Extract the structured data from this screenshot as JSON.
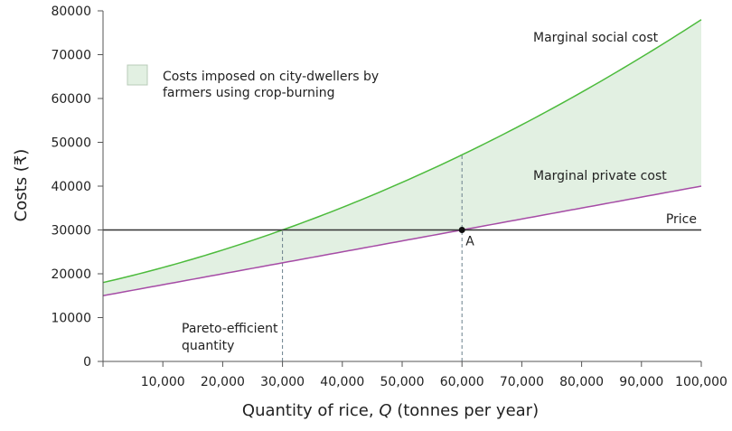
{
  "chart_data": {
    "type": "line",
    "title": "",
    "xlabel": "Quantity of rice, ",
    "xlabel_italic": "Q",
    "xlabel_suffix": " (tonnes per year)",
    "ylabel": "Costs (₹)",
    "xlim": [
      0,
      100000
    ],
    "ylim": [
      0,
      80000
    ],
    "grid": false,
    "x_ticks": [
      10000,
      20000,
      30000,
      40000,
      50000,
      60000,
      70000,
      80000,
      90000,
      100000
    ],
    "x_tick_labels": [
      "10,000",
      "20,000",
      "30,000",
      "40,000",
      "50,000",
      "60,000",
      "70,000",
      "80,000",
      "90,000",
      "100,000"
    ],
    "y_ticks": [
      0,
      10000,
      20000,
      30000,
      40000,
      50000,
      60000,
      70000,
      80000
    ],
    "y_tick_labels": [
      "0",
      "10000",
      "20000",
      "30000",
      "40000",
      "50000",
      "60000",
      "70000",
      "80000"
    ],
    "series": [
      {
        "name": "Marginal social cost",
        "color": "#4cbb3c",
        "x": [
          0,
          10000,
          20000,
          30000,
          40000,
          50000,
          60000,
          70000,
          80000,
          90000,
          100000
        ],
        "y": [
          18000,
          21429,
          25429,
          30000,
          35143,
          40857,
          47143,
          54000,
          61429,
          69429,
          78000
        ]
      },
      {
        "name": "Marginal private cost",
        "color": "#a64ca6",
        "x": [
          0,
          100000
        ],
        "y": [
          15000,
          40000
        ]
      },
      {
        "name": "Price",
        "color": "#333333",
        "x": [
          0,
          100000
        ],
        "y": [
          30000,
          30000
        ]
      }
    ],
    "shaded_area": {
      "label": "Costs imposed on city-dwellers by farmers using crop-burning",
      "color": "#e2f0e2",
      "between": [
        "Marginal private cost",
        "Marginal social cost"
      ]
    },
    "legend_placement": "top-left",
    "points": [
      {
        "label": "A",
        "x": 60000,
        "y": 30000
      }
    ],
    "vlines": [
      {
        "x": 30000,
        "y_top": 30000,
        "label": "Pareto-efficient quantity"
      },
      {
        "x": 60000,
        "y_top": 47143,
        "label": ""
      }
    ]
  }
}
